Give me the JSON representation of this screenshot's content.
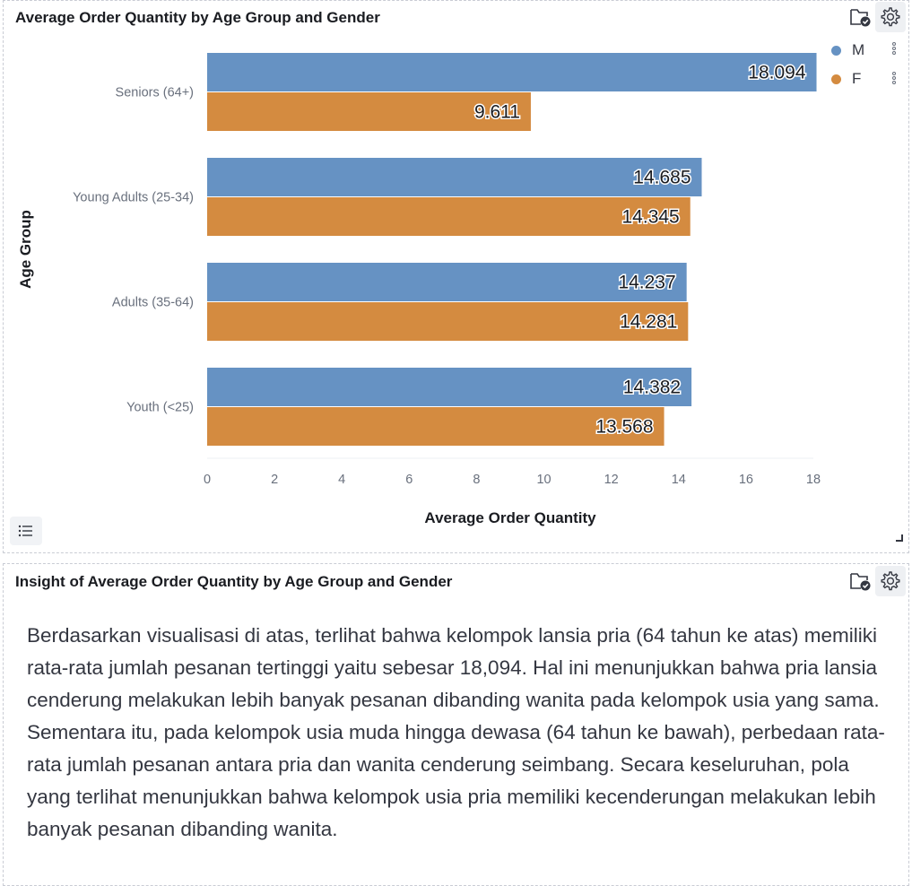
{
  "chart_panel": {
    "title": "Average Order Quantity by Age Group and Gender",
    "folder_icon": "folder-check-icon",
    "settings_icon": "gear-icon"
  },
  "chart_data": {
    "type": "bar",
    "orientation": "horizontal",
    "title": "Average Order Quantity by Age Group and Gender",
    "xlabel": "Average Order Quantity",
    "ylabel": "Age Group",
    "categories": [
      "Seniors (64+)",
      "Young Adults (25-34)",
      "Adults (35-64)",
      "Youth (<25)"
    ],
    "series": [
      {
        "name": "M",
        "color": "#6692c3",
        "values": [
          18.094,
          14.685,
          14.237,
          14.382
        ],
        "labels": [
          "18.094",
          "14.685",
          "14.237",
          "14.382"
        ]
      },
      {
        "name": "F",
        "color": "#d48b40",
        "values": [
          9.611,
          14.345,
          14.281,
          13.568
        ],
        "labels": [
          "9.611",
          "14.345",
          "14.281",
          "13.568"
        ]
      }
    ],
    "xlim": [
      0,
      18
    ],
    "xticks": [
      "0",
      "2",
      "4",
      "6",
      "8",
      "10",
      "12",
      "14",
      "16",
      "18"
    ],
    "legend_position": "top-right",
    "grid": false
  },
  "insight_panel": {
    "title": "Insight of Average Order Quantity by Age Group and Gender",
    "folder_icon": "folder-check-icon",
    "settings_icon": "gear-icon",
    "text": "Berdasarkan visualisasi di atas, terlihat bahwa kelompok lansia pria (64 tahun ke atas) memiliki rata-rata jumlah pesanan tertinggi yaitu sebesar 18,094. Hal ini menunjukkan bahwa pria lansia cenderung melakukan lebih banyak pesanan dibanding wanita pada kelompok usia yang sama. Sementara itu, pada kelompok usia muda hingga dewasa (64 tahun ke bawah), perbedaan rata-rata jumlah pesanan antara pria dan wanita cenderung seimbang. Secara keseluruhan, pola yang terlihat menunjukkan bahwa kelompok usia pria memiliki kecenderungan melakukan lebih banyak pesanan dibanding wanita."
  },
  "list_button_icon": "list-icon"
}
